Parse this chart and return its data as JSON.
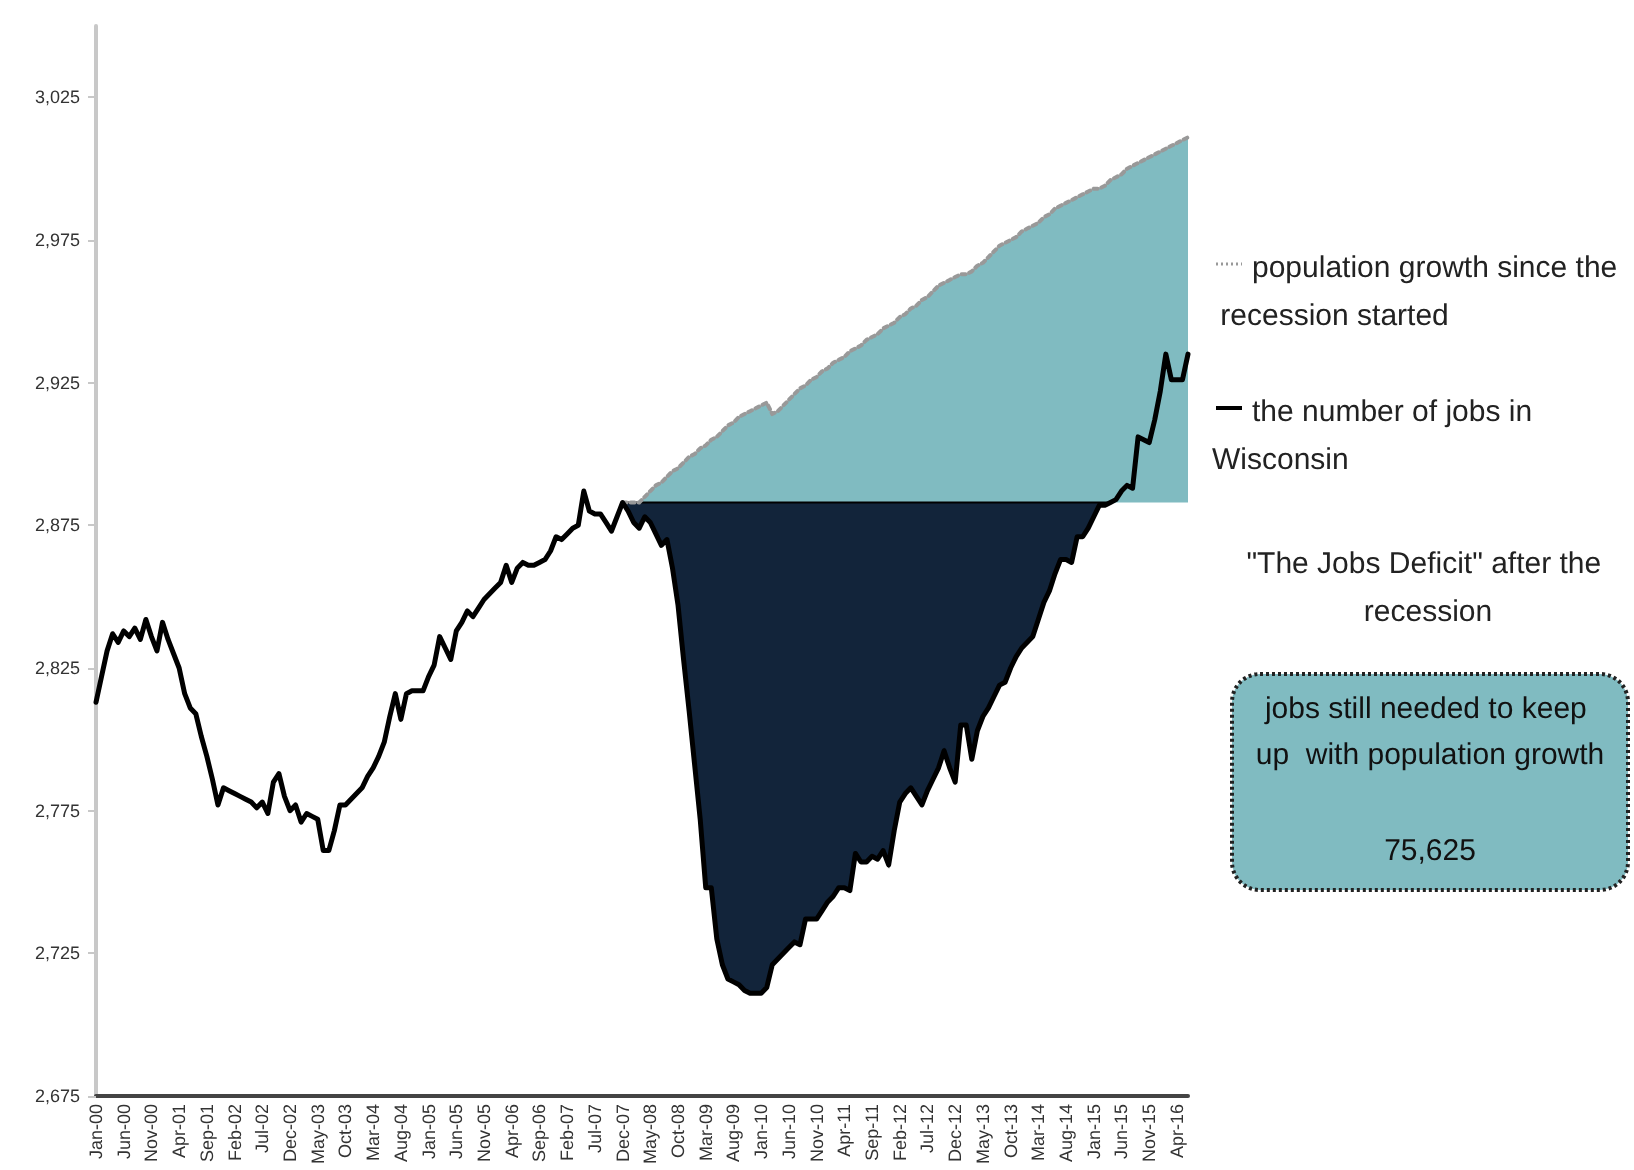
{
  "chart_data": {
    "type": "line",
    "categories": [
      "Jan-00",
      null,
      null,
      null,
      null,
      "Jun-00",
      null,
      null,
      null,
      null,
      "Nov-00",
      null,
      null,
      null,
      null,
      "Apr-01",
      null,
      null,
      null,
      null,
      "Sep-01",
      null,
      null,
      null,
      null,
      "Feb-02",
      null,
      null,
      null,
      null,
      "Jul-02",
      null,
      null,
      null,
      null,
      "Dec-02",
      null,
      null,
      null,
      null,
      "May-03",
      null,
      null,
      null,
      null,
      "Oct-03",
      null,
      null,
      null,
      null,
      "Mar-04",
      null,
      null,
      null,
      null,
      "Aug-04",
      null,
      null,
      null,
      null,
      "Jan-05",
      null,
      null,
      null,
      null,
      "Jun-05",
      null,
      null,
      null,
      null,
      "Nov-05",
      null,
      null,
      null,
      null,
      "Apr-06",
      null,
      null,
      null,
      null,
      "Sep-06",
      null,
      null,
      null,
      null,
      "Feb-07",
      null,
      null,
      null,
      null,
      "Jul-07",
      null,
      null,
      null,
      null,
      "Dec-07",
      null,
      null,
      null,
      null,
      "May-08",
      null,
      null,
      null,
      null,
      "Oct-08",
      null,
      null,
      null,
      null,
      "Mar-09",
      null,
      null,
      null,
      null,
      "Aug-09",
      null,
      null,
      null,
      null,
      "Jan-10",
      null,
      null,
      null,
      null,
      "Jun-10",
      null,
      null,
      null,
      null,
      "Nov-10",
      null,
      null,
      null,
      null,
      "Apr-11",
      null,
      null,
      null,
      null,
      "Sep-11",
      null,
      null,
      null,
      null,
      "Feb-12",
      null,
      null,
      null,
      null,
      "Jul-12",
      null,
      null,
      null,
      null,
      "Dec-12",
      null,
      null,
      null,
      null,
      "May-13",
      null,
      null,
      null,
      null,
      "Oct-13",
      null,
      null,
      null,
      null,
      "Mar-14",
      null,
      null,
      null,
      null,
      "Aug-14",
      null,
      null,
      null,
      null,
      "Jan-15",
      null,
      null,
      null,
      null,
      "Jun-15",
      null,
      null,
      null,
      null,
      "Nov-15",
      null,
      null,
      null,
      null,
      "Apr-16",
      null,
      null
    ],
    "series": [
      {
        "type": "area",
        "color": "#80bbc1",
        "name": "population growth since the recession started",
        "line_style": "dotted",
        "values": [
          null,
          null,
          null,
          null,
          null,
          null,
          null,
          null,
          null,
          null,
          null,
          null,
          null,
          null,
          null,
          null,
          null,
          null,
          null,
          null,
          null,
          null,
          null,
          null,
          null,
          null,
          null,
          null,
          null,
          null,
          null,
          null,
          null,
          null,
          null,
          null,
          null,
          null,
          null,
          null,
          null,
          null,
          null,
          null,
          null,
          null,
          null,
          null,
          null,
          null,
          null,
          null,
          null,
          null,
          null,
          null,
          null,
          null,
          null,
          null,
          null,
          null,
          null,
          null,
          null,
          null,
          null,
          null,
          null,
          null,
          null,
          null,
          null,
          null,
          null,
          null,
          null,
          null,
          null,
          null,
          null,
          null,
          null,
          null,
          null,
          null,
          null,
          null,
          null,
          null,
          null,
          null,
          null,
          null,
          null,
          2883,
          2883,
          2883,
          2883,
          2885,
          2887,
          2889,
          2890,
          2892,
          2894,
          2895,
          2897,
          2899,
          2900,
          2902,
          2903,
          2905,
          2906,
          2908,
          2910,
          2911,
          2913,
          2914,
          2915,
          2916,
          2917,
          2918,
          2914,
          2915,
          2917,
          2919,
          2921,
          2923,
          2924,
          2926,
          2927,
          2929,
          2930,
          2932,
          2933,
          2934,
          2936,
          2937,
          2938,
          2940,
          2941,
          2942,
          2944,
          2945,
          2946,
          2948,
          2949,
          2951,
          2952,
          2954,
          2955,
          2957,
          2959,
          2960,
          2961,
          2962,
          2963,
          2963,
          2964,
          2966,
          2967,
          2969,
          2971,
          2973,
          2974,
          2975,
          2976,
          2978,
          2979,
          2980,
          2981,
          2983,
          2984,
          2986,
          2987,
          2988,
          2989,
          2990,
          2991,
          2992,
          2993,
          2993,
          2994,
          2996,
          2997,
          2998,
          3000,
          3001,
          3002,
          3003,
          3004,
          3005,
          3006,
          3007,
          3008,
          3009,
          3010,
          3011
        ]
      },
      {
        "type": "area",
        "color": "#12243a",
        "values": [
          null,
          null,
          null,
          null,
          null,
          null,
          null,
          null,
          null,
          null,
          null,
          null,
          null,
          null,
          null,
          null,
          null,
          null,
          null,
          null,
          null,
          null,
          null,
          null,
          null,
          null,
          null,
          null,
          null,
          null,
          null,
          null,
          null,
          null,
          null,
          null,
          null,
          null,
          null,
          null,
          null,
          null,
          null,
          null,
          null,
          null,
          null,
          null,
          null,
          null,
          null,
          null,
          null,
          null,
          null,
          null,
          null,
          null,
          null,
          null,
          null,
          null,
          null,
          null,
          null,
          null,
          null,
          null,
          null,
          null,
          null,
          null,
          null,
          null,
          null,
          null,
          null,
          null,
          null,
          null,
          null,
          null,
          null,
          null,
          null,
          null,
          null,
          null,
          null,
          null,
          null,
          null,
          null,
          null,
          null,
          2883,
          2880,
          2876,
          2874,
          2878,
          2876,
          2872,
          2868,
          2870,
          2860,
          2847,
          2828,
          2810,
          2791,
          2772,
          2748,
          2748,
          2730,
          2721,
          2716,
          2715,
          2714,
          2712,
          2711,
          2711,
          2711,
          2713,
          2721,
          2723,
          2725,
          2727,
          2729,
          2728,
          2737,
          2737,
          2737,
          2740,
          2743,
          2745,
          2748,
          2748,
          2747,
          2760,
          2757,
          2757,
          2759,
          2758,
          2761,
          2756,
          2768,
          2778,
          2781,
          2783,
          2780,
          2777,
          2782,
          2786,
          2790,
          2796,
          2790,
          2785,
          2805,
          2805,
          2793,
          2803,
          2808,
          2811,
          2815,
          2819,
          2820,
          2825,
          2829,
          2832,
          2834,
          2836,
          2842,
          2848,
          2852,
          2858,
          2863,
          2863,
          2862,
          2871,
          2871,
          2874,
          2878,
          2882,
          2882,
          2883,
          null,
          null,
          null,
          null,
          null,
          null,
          null,
          null,
          null,
          null,
          null,
          null,
          null,
          null
        ]
      },
      {
        "color": "#000000",
        "name": "the number of jobs in Wisconsin",
        "line_style": "solid",
        "values": [
          2813,
          2822,
          2831,
          2837,
          2834,
          2838,
          2836,
          2839,
          2835,
          2842,
          2836,
          2831,
          2841,
          2835,
          2830,
          2825,
          2816,
          2811,
          2809,
          2801,
          2794,
          2786,
          2777,
          2783,
          2782,
          2781,
          2780,
          2779,
          2778,
          2776,
          2778,
          2774,
          2785,
          2788,
          2780,
          2775,
          2777,
          2771,
          2774,
          2773,
          2772,
          2761,
          2761,
          2768,
          2777,
          2777,
          2779,
          2781,
          2783,
          2787,
          2790,
          2794,
          2799,
          2808,
          2816,
          2807,
          2816,
          2817,
          2817,
          2817,
          2822,
          2826,
          2836,
          2832,
          2828,
          2838,
          2841,
          2845,
          2843,
          2846,
          2849,
          2851,
          2853,
          2855,
          2861,
          2855,
          2860,
          2862,
          2861,
          2861,
          2862,
          2863,
          2866,
          2871,
          2870,
          2872,
          2874,
          2875,
          2887,
          2880,
          2879,
          2879,
          2876,
          2873,
          2878,
          2883,
          2880,
          2876,
          2874,
          2878,
          2876,
          2872,
          2868,
          2870,
          2860,
          2847,
          2828,
          2810,
          2791,
          2772,
          2748,
          2748,
          2730,
          2721,
          2716,
          2715,
          2714,
          2712,
          2711,
          2711,
          2711,
          2713,
          2721,
          2723,
          2725,
          2727,
          2729,
          2728,
          2737,
          2737,
          2737,
          2740,
          2743,
          2745,
          2748,
          2748,
          2747,
          2760,
          2757,
          2757,
          2759,
          2758,
          2761,
          2756,
          2768,
          2778,
          2781,
          2783,
          2780,
          2777,
          2782,
          2786,
          2790,
          2796,
          2790,
          2785,
          2805,
          2805,
          2793,
          2803,
          2808,
          2811,
          2815,
          2819,
          2820,
          2825,
          2829,
          2832,
          2834,
          2836,
          2842,
          2848,
          2852,
          2858,
          2863,
          2863,
          2862,
          2871,
          2871,
          2874,
          2878,
          2882,
          2882,
          2883,
          2884,
          2887,
          2889,
          2888,
          2906,
          2905,
          2904,
          2912,
          2922,
          2935,
          2926,
          2926,
          2926,
          2935
        ]
      }
    ],
    "ylim": [
      2675,
      3050
    ],
    "yticks": [
      {
        "value": 2675,
        "label": "2,675"
      },
      {
        "value": 2725,
        "label": "2,725"
      },
      {
        "value": 2775,
        "label": "2,775"
      },
      {
        "value": 2825,
        "label": "2,825"
      },
      {
        "value": 2875,
        "label": "2,875"
      },
      {
        "value": 2925,
        "label": "2,925"
      },
      {
        "value": 2975,
        "label": "2,975"
      },
      {
        "value": 3025,
        "label": "3,025"
      }
    ],
    "grid": false,
    "legend": "right",
    "marker": "none",
    "annotations": [
      "\"The Jobs Deficit\" after the recession",
      "jobs still needed to keep up  with population growth",
      "75,625"
    ]
  }
}
